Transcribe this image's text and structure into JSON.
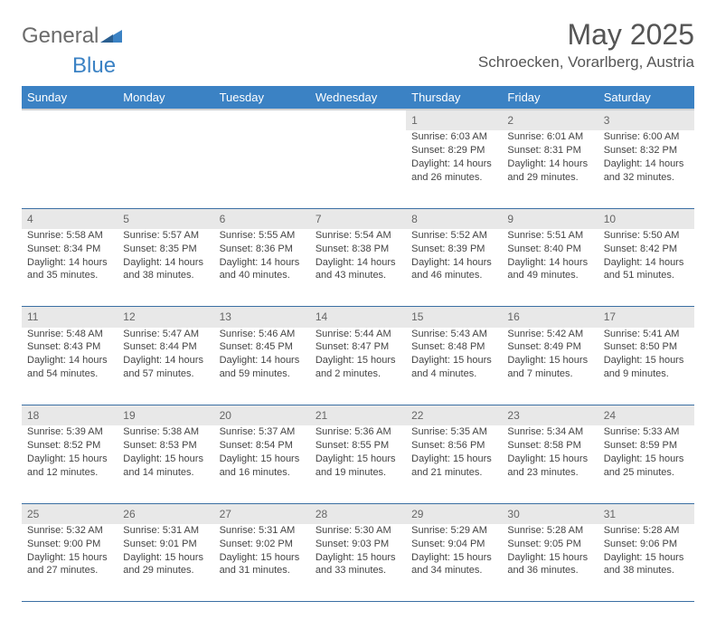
{
  "brand": {
    "name1": "General",
    "name2": "Blue"
  },
  "title": "May 2025",
  "location": "Schroecken, Vorarlberg, Austria",
  "header_bg": "#3b82c4",
  "header_fg": "#ffffff",
  "daynum_bg": "#e8e8e8",
  "row_border": "#3b6fa3",
  "weekdays": [
    "Sunday",
    "Monday",
    "Tuesday",
    "Wednesday",
    "Thursday",
    "Friday",
    "Saturday"
  ],
  "weeks": [
    [
      null,
      null,
      null,
      null,
      {
        "n": "1",
        "sr": "6:03 AM",
        "ss": "8:29 PM",
        "dl": "14 hours and 26 minutes."
      },
      {
        "n": "2",
        "sr": "6:01 AM",
        "ss": "8:31 PM",
        "dl": "14 hours and 29 minutes."
      },
      {
        "n": "3",
        "sr": "6:00 AM",
        "ss": "8:32 PM",
        "dl": "14 hours and 32 minutes."
      }
    ],
    [
      {
        "n": "4",
        "sr": "5:58 AM",
        "ss": "8:34 PM",
        "dl": "14 hours and 35 minutes."
      },
      {
        "n": "5",
        "sr": "5:57 AM",
        "ss": "8:35 PM",
        "dl": "14 hours and 38 minutes."
      },
      {
        "n": "6",
        "sr": "5:55 AM",
        "ss": "8:36 PM",
        "dl": "14 hours and 40 minutes."
      },
      {
        "n": "7",
        "sr": "5:54 AM",
        "ss": "8:38 PM",
        "dl": "14 hours and 43 minutes."
      },
      {
        "n": "8",
        "sr": "5:52 AM",
        "ss": "8:39 PM",
        "dl": "14 hours and 46 minutes."
      },
      {
        "n": "9",
        "sr": "5:51 AM",
        "ss": "8:40 PM",
        "dl": "14 hours and 49 minutes."
      },
      {
        "n": "10",
        "sr": "5:50 AM",
        "ss": "8:42 PM",
        "dl": "14 hours and 51 minutes."
      }
    ],
    [
      {
        "n": "11",
        "sr": "5:48 AM",
        "ss": "8:43 PM",
        "dl": "14 hours and 54 minutes."
      },
      {
        "n": "12",
        "sr": "5:47 AM",
        "ss": "8:44 PM",
        "dl": "14 hours and 57 minutes."
      },
      {
        "n": "13",
        "sr": "5:46 AM",
        "ss": "8:45 PM",
        "dl": "14 hours and 59 minutes."
      },
      {
        "n": "14",
        "sr": "5:44 AM",
        "ss": "8:47 PM",
        "dl": "15 hours and 2 minutes."
      },
      {
        "n": "15",
        "sr": "5:43 AM",
        "ss": "8:48 PM",
        "dl": "15 hours and 4 minutes."
      },
      {
        "n": "16",
        "sr": "5:42 AM",
        "ss": "8:49 PM",
        "dl": "15 hours and 7 minutes."
      },
      {
        "n": "17",
        "sr": "5:41 AM",
        "ss": "8:50 PM",
        "dl": "15 hours and 9 minutes."
      }
    ],
    [
      {
        "n": "18",
        "sr": "5:39 AM",
        "ss": "8:52 PM",
        "dl": "15 hours and 12 minutes."
      },
      {
        "n": "19",
        "sr": "5:38 AM",
        "ss": "8:53 PM",
        "dl": "15 hours and 14 minutes."
      },
      {
        "n": "20",
        "sr": "5:37 AM",
        "ss": "8:54 PM",
        "dl": "15 hours and 16 minutes."
      },
      {
        "n": "21",
        "sr": "5:36 AM",
        "ss": "8:55 PM",
        "dl": "15 hours and 19 minutes."
      },
      {
        "n": "22",
        "sr": "5:35 AM",
        "ss": "8:56 PM",
        "dl": "15 hours and 21 minutes."
      },
      {
        "n": "23",
        "sr": "5:34 AM",
        "ss": "8:58 PM",
        "dl": "15 hours and 23 minutes."
      },
      {
        "n": "24",
        "sr": "5:33 AM",
        "ss": "8:59 PM",
        "dl": "15 hours and 25 minutes."
      }
    ],
    [
      {
        "n": "25",
        "sr": "5:32 AM",
        "ss": "9:00 PM",
        "dl": "15 hours and 27 minutes."
      },
      {
        "n": "26",
        "sr": "5:31 AM",
        "ss": "9:01 PM",
        "dl": "15 hours and 29 minutes."
      },
      {
        "n": "27",
        "sr": "5:31 AM",
        "ss": "9:02 PM",
        "dl": "15 hours and 31 minutes."
      },
      {
        "n": "28",
        "sr": "5:30 AM",
        "ss": "9:03 PM",
        "dl": "15 hours and 33 minutes."
      },
      {
        "n": "29",
        "sr": "5:29 AM",
        "ss": "9:04 PM",
        "dl": "15 hours and 34 minutes."
      },
      {
        "n": "30",
        "sr": "5:28 AM",
        "ss": "9:05 PM",
        "dl": "15 hours and 36 minutes."
      },
      {
        "n": "31",
        "sr": "5:28 AM",
        "ss": "9:06 PM",
        "dl": "15 hours and 38 minutes."
      }
    ]
  ],
  "labels": {
    "sunrise": "Sunrise: ",
    "sunset": "Sunset: ",
    "daylight": "Daylight: "
  }
}
